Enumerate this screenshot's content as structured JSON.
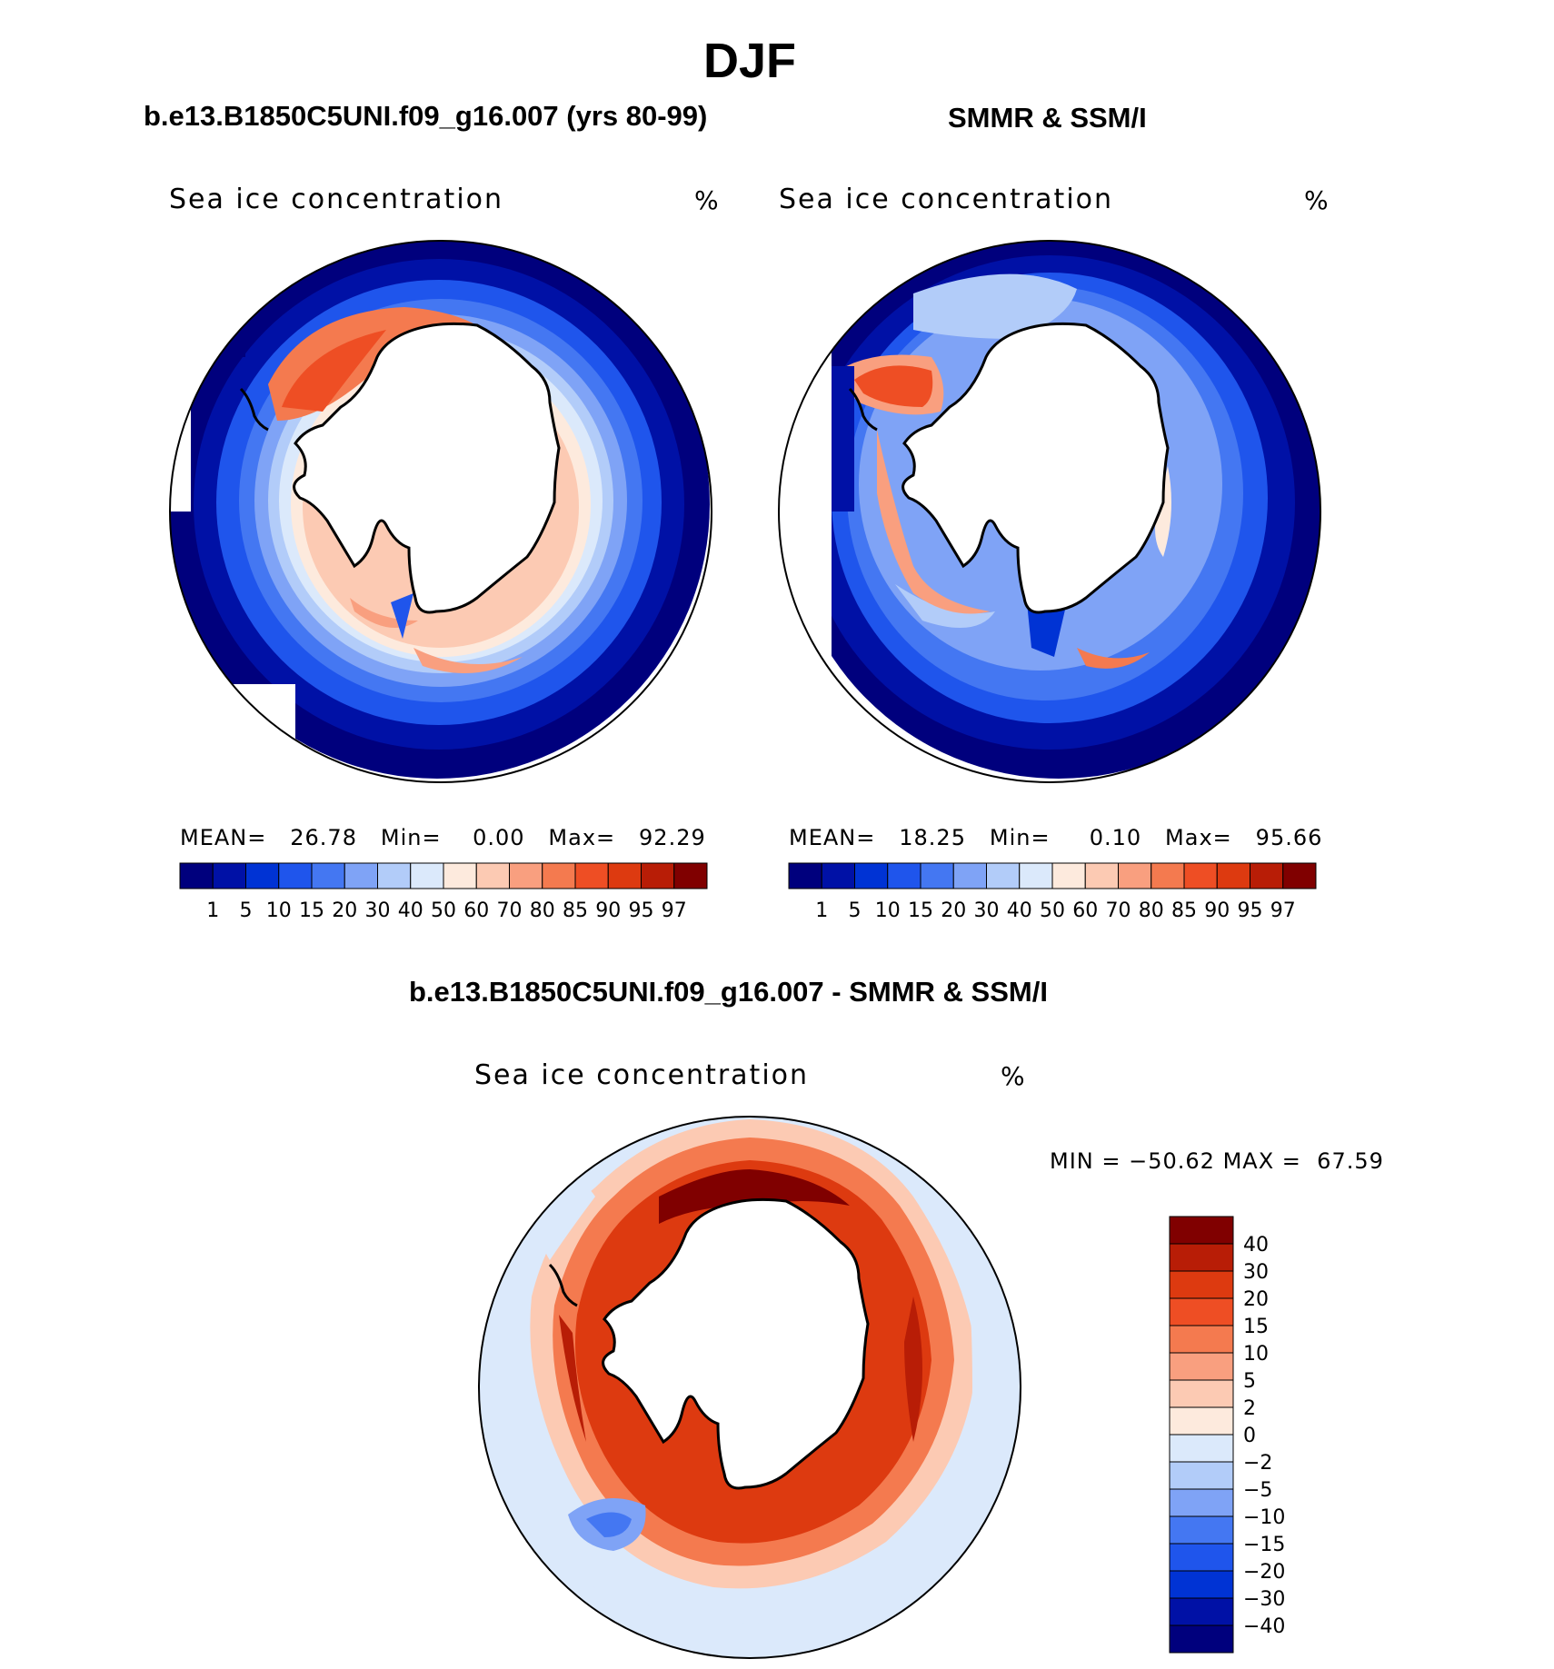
{
  "page_title": "DJF",
  "panels": [
    {
      "heading": "b.e13.B1850C5UNI.f09_g16.007 (yrs 80-99)",
      "plot_title": "Sea ice concentration",
      "units": "%",
      "stats": {
        "mean_label": "MEAN=",
        "mean": "26.78",
        "min_label": "Min=",
        "min": "0.00",
        "max_label": "Max=",
        "max": "92.29"
      }
    },
    {
      "heading": "SMMR & SSM/I",
      "plot_title": "Sea ice concentration",
      "units": "%",
      "stats": {
        "mean_label": "MEAN=",
        "mean": "18.25",
        "min_label": "Min=",
        "min": "0.10",
        "max_label": "Max=",
        "max": "95.66"
      }
    },
    {
      "heading": "b.e13.B1850C5UNI.f09_g16.007 - SMMR & SSM/I",
      "plot_title": "Sea ice concentration",
      "units": "%",
      "stats": {
        "min_label": "MIN =",
        "min": "−50.62",
        "max_label": "MAX =",
        "max": "67.59"
      }
    }
  ],
  "colorbar_conc": {
    "labels": [
      "1",
      "5",
      "10",
      "15",
      "20",
      "30",
      "40",
      "50",
      "60",
      "70",
      "80",
      "85",
      "90",
      "95",
      "97"
    ],
    "colors": [
      "#00007d",
      "#0011a6",
      "#0033d4",
      "#1f55ec",
      "#4477f2",
      "#7fa3f6",
      "#b2ccf9",
      "#dbe9fb",
      "#fdeadd",
      "#fccab3",
      "#f99f7f",
      "#f47a4f",
      "#ee4e24",
      "#dd3a10",
      "#b81d06",
      "#800000"
    ]
  },
  "colorbar_diff": {
    "labels": [
      "40",
      "30",
      "20",
      "15",
      "10",
      "5",
      "2",
      "0",
      "−2",
      "−5",
      "−10",
      "−15",
      "−20",
      "−30",
      "−40"
    ],
    "colors": [
      "#800000",
      "#b81d06",
      "#dd3a10",
      "#ee4e24",
      "#f47a4f",
      "#f99f7f",
      "#fccab3",
      "#fdeadd",
      "#dbe9fb",
      "#b2ccf9",
      "#7fa3f6",
      "#4477f2",
      "#1f55ec",
      "#0033d4",
      "#0011a6",
      "#00007d"
    ]
  }
}
